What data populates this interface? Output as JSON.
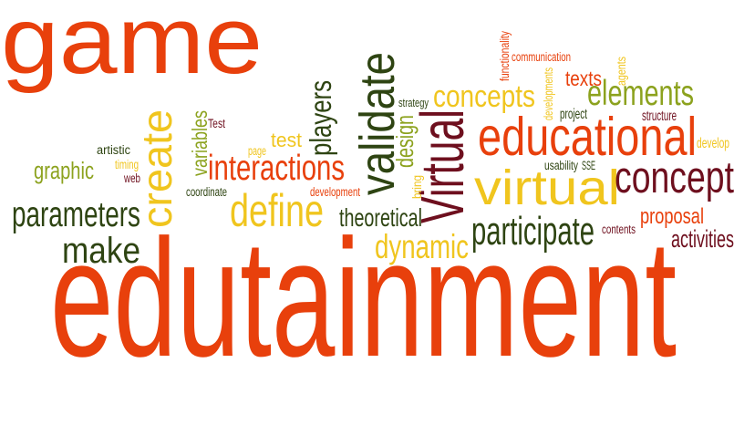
{
  "word_cloud": {
    "words": [
      {
        "text": "game",
        "color": "#e8400c",
        "orientation": "horizontal"
      },
      {
        "text": "edutainment",
        "color": "#e8400c",
        "orientation": "horizontal"
      },
      {
        "text": "educational",
        "color": "#e8400c",
        "orientation": "horizontal"
      },
      {
        "text": "virtual",
        "color": "#f0c51e",
        "orientation": "horizontal"
      },
      {
        "text": "Virtual",
        "color": "#6e0f1e",
        "orientation": "vertical"
      },
      {
        "text": "validate",
        "color": "#2e4412",
        "orientation": "vertical"
      },
      {
        "text": "create",
        "color": "#f0c51e",
        "orientation": "vertical"
      },
      {
        "text": "concept",
        "color": "#6e0f1e",
        "orientation": "horizontal"
      },
      {
        "text": "concepts",
        "color": "#f0c51e",
        "orientation": "horizontal"
      },
      {
        "text": "elements",
        "color": "#8ca21e",
        "orientation": "horizontal"
      },
      {
        "text": "define",
        "color": "#f0c51e",
        "orientation": "horizontal"
      },
      {
        "text": "interactions",
        "color": "#e8400c",
        "orientation": "horizontal"
      },
      {
        "text": "parameters",
        "color": "#2e4412",
        "orientation": "horizontal"
      },
      {
        "text": "make",
        "color": "#2e4412",
        "orientation": "horizontal"
      },
      {
        "text": "participate",
        "color": "#2e4412",
        "orientation": "horizontal"
      },
      {
        "text": "dynamic",
        "color": "#f0c51e",
        "orientation": "horizontal"
      },
      {
        "text": "players",
        "color": "#2e4412",
        "orientation": "vertical"
      },
      {
        "text": "theoretical",
        "color": "#2e4412",
        "orientation": "horizontal"
      },
      {
        "text": "activities",
        "color": "#6e0f1e",
        "orientation": "horizontal"
      },
      {
        "text": "proposal",
        "color": "#e8400c",
        "orientation": "horizontal"
      },
      {
        "text": "texts",
        "color": "#e8400c",
        "orientation": "horizontal"
      },
      {
        "text": "graphic",
        "color": "#8ca21e",
        "orientation": "horizontal"
      },
      {
        "text": "test",
        "color": "#f0c51e",
        "orientation": "horizontal"
      },
      {
        "text": "design",
        "color": "#8ca21e",
        "orientation": "vertical"
      },
      {
        "text": "variables",
        "color": "#8ca21e",
        "orientation": "vertical"
      },
      {
        "text": "artistic",
        "color": "#2e4412",
        "orientation": "horizontal"
      },
      {
        "text": "timing",
        "color": "#f0c51e",
        "orientation": "horizontal"
      },
      {
        "text": "web",
        "color": "#6e0f1e",
        "orientation": "horizontal"
      },
      {
        "text": "page",
        "color": "#f0c51e",
        "orientation": "horizontal"
      },
      {
        "text": "Test",
        "color": "#6e0f1e",
        "orientation": "horizontal"
      },
      {
        "text": "coordinate",
        "color": "#2e4412",
        "orientation": "horizontal"
      },
      {
        "text": "development",
        "color": "#e8400c",
        "orientation": "horizontal"
      },
      {
        "text": "strategy",
        "color": "#2e4412",
        "orientation": "horizontal"
      },
      {
        "text": "bring",
        "color": "#f0c51e",
        "orientation": "vertical"
      },
      {
        "text": "functionality",
        "color": "#e8400c",
        "orientation": "vertical"
      },
      {
        "text": "communication",
        "color": "#e8400c",
        "orientation": "horizontal"
      },
      {
        "text": "developments",
        "color": "#f0c51e",
        "orientation": "vertical"
      },
      {
        "text": "agents",
        "color": "#f0c51e",
        "orientation": "vertical"
      },
      {
        "text": "project",
        "color": "#2e4412",
        "orientation": "horizontal"
      },
      {
        "text": "structure",
        "color": "#6e0f1e",
        "orientation": "horizontal"
      },
      {
        "text": "develop",
        "color": "#f0c51e",
        "orientation": "horizontal"
      },
      {
        "text": "usability",
        "color": "#2e4412",
        "orientation": "horizontal"
      },
      {
        "text": "SSE",
        "color": "#2e4412",
        "orientation": "horizontal"
      },
      {
        "text": "contents",
        "color": "#6e0f1e",
        "orientation": "horizontal"
      }
    ]
  }
}
